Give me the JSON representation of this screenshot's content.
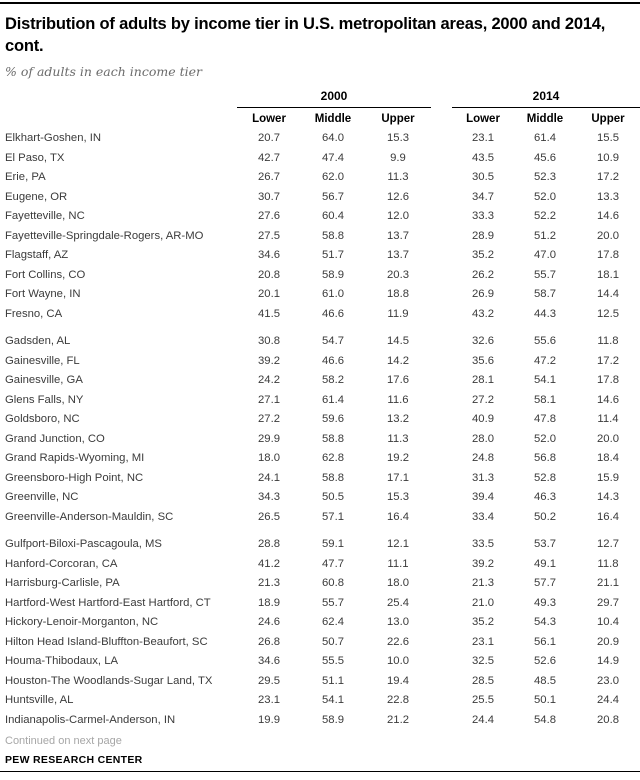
{
  "page": {
    "title": "Distribution of adults by income tier in U.S. metropolitan areas, 2000 and 2014, cont.",
    "subtitle": "% of adults in each income tier",
    "continued_note": "Continued on next page",
    "source": "PEW RESEARCH CENTER"
  },
  "table": {
    "year_headers": [
      "2000",
      "2014"
    ],
    "tier_headers": [
      "Lower",
      "Middle",
      "Upper"
    ],
    "groups": [
      {
        "rows": [
          {
            "area": "Elkhart-Goshen, IN",
            "values_2000": [
              "20.7",
              "64.0",
              "15.3"
            ],
            "values_2014": [
              "23.1",
              "61.4",
              "15.5"
            ]
          },
          {
            "area": "El Paso, TX",
            "values_2000": [
              "42.7",
              "47.4",
              "9.9"
            ],
            "values_2014": [
              "43.5",
              "45.6",
              "10.9"
            ]
          },
          {
            "area": "Erie, PA",
            "values_2000": [
              "26.7",
              "62.0",
              "11.3"
            ],
            "values_2014": [
              "30.5",
              "52.3",
              "17.2"
            ]
          },
          {
            "area": "Eugene, OR",
            "values_2000": [
              "30.7",
              "56.7",
              "12.6"
            ],
            "values_2014": [
              "34.7",
              "52.0",
              "13.3"
            ]
          },
          {
            "area": "Fayetteville, NC",
            "values_2000": [
              "27.6",
              "60.4",
              "12.0"
            ],
            "values_2014": [
              "33.3",
              "52.2",
              "14.6"
            ]
          },
          {
            "area": "Fayetteville-Springdale-Rogers, AR-MO",
            "values_2000": [
              "27.5",
              "58.8",
              "13.7"
            ],
            "values_2014": [
              "28.9",
              "51.2",
              "20.0"
            ]
          },
          {
            "area": "Flagstaff, AZ",
            "values_2000": [
              "34.6",
              "51.7",
              "13.7"
            ],
            "values_2014": [
              "35.2",
              "47.0",
              "17.8"
            ]
          },
          {
            "area": "Fort Collins, CO",
            "values_2000": [
              "20.8",
              "58.9",
              "20.3"
            ],
            "values_2014": [
              "26.2",
              "55.7",
              "18.1"
            ]
          },
          {
            "area": "Fort Wayne, IN",
            "values_2000": [
              "20.1",
              "61.0",
              "18.8"
            ],
            "values_2014": [
              "26.9",
              "58.7",
              "14.4"
            ]
          },
          {
            "area": "Fresno, CA",
            "values_2000": [
              "41.5",
              "46.6",
              "11.9"
            ],
            "values_2014": [
              "43.2",
              "44.3",
              "12.5"
            ]
          }
        ]
      },
      {
        "rows": [
          {
            "area": "Gadsden, AL",
            "values_2000": [
              "30.8",
              "54.7",
              "14.5"
            ],
            "values_2014": [
              "32.6",
              "55.6",
              "11.8"
            ]
          },
          {
            "area": "Gainesville, FL",
            "values_2000": [
              "39.2",
              "46.6",
              "14.2"
            ],
            "values_2014": [
              "35.6",
              "47.2",
              "17.2"
            ]
          },
          {
            "area": "Gainesville, GA",
            "values_2000": [
              "24.2",
              "58.2",
              "17.6"
            ],
            "values_2014": [
              "28.1",
              "54.1",
              "17.8"
            ]
          },
          {
            "area": "Glens Falls, NY",
            "values_2000": [
              "27.1",
              "61.4",
              "11.6"
            ],
            "values_2014": [
              "27.2",
              "58.1",
              "14.6"
            ]
          },
          {
            "area": "Goldsboro, NC",
            "values_2000": [
              "27.2",
              "59.6",
              "13.2"
            ],
            "values_2014": [
              "40.9",
              "47.8",
              "11.4"
            ]
          },
          {
            "area": "Grand Junction, CO",
            "values_2000": [
              "29.9",
              "58.8",
              "11.3"
            ],
            "values_2014": [
              "28.0",
              "52.0",
              "20.0"
            ]
          },
          {
            "area": "Grand Rapids-Wyoming, MI",
            "values_2000": [
              "18.0",
              "62.8",
              "19.2"
            ],
            "values_2014": [
              "24.8",
              "56.8",
              "18.4"
            ]
          },
          {
            "area": "Greensboro-High Point, NC",
            "values_2000": [
              "24.1",
              "58.8",
              "17.1"
            ],
            "values_2014": [
              "31.3",
              "52.8",
              "15.9"
            ]
          },
          {
            "area": "Greenville, NC",
            "values_2000": [
              "34.3",
              "50.5",
              "15.3"
            ],
            "values_2014": [
              "39.4",
              "46.3",
              "14.3"
            ]
          },
          {
            "area": "Greenville-Anderson-Mauldin, SC",
            "values_2000": [
              "26.5",
              "57.1",
              "16.4"
            ],
            "values_2014": [
              "33.4",
              "50.2",
              "16.4"
            ]
          }
        ]
      },
      {
        "rows": [
          {
            "area": "Gulfport-Biloxi-Pascagoula, MS",
            "values_2000": [
              "28.8",
              "59.1",
              "12.1"
            ],
            "values_2014": [
              "33.5",
              "53.7",
              "12.7"
            ]
          },
          {
            "area": "Hanford-Corcoran, CA",
            "values_2000": [
              "41.2",
              "47.7",
              "11.1"
            ],
            "values_2014": [
              "39.2",
              "49.1",
              "11.8"
            ]
          },
          {
            "area": "Harrisburg-Carlisle, PA",
            "values_2000": [
              "21.3",
              "60.8",
              "18.0"
            ],
            "values_2014": [
              "21.3",
              "57.7",
              "21.1"
            ]
          },
          {
            "area": "Hartford-West Hartford-East Hartford, CT",
            "values_2000": [
              "18.9",
              "55.7",
              "25.4"
            ],
            "values_2014": [
              "21.0",
              "49.3",
              "29.7"
            ]
          },
          {
            "area": "Hickory-Lenoir-Morganton, NC",
            "values_2000": [
              "24.6",
              "62.4",
              "13.0"
            ],
            "values_2014": [
              "35.2",
              "54.3",
              "10.4"
            ]
          },
          {
            "area": "Hilton Head Island-Bluffton-Beaufort, SC",
            "values_2000": [
              "26.8",
              "50.7",
              "22.6"
            ],
            "values_2014": [
              "23.1",
              "56.1",
              "20.9"
            ]
          },
          {
            "area": "Houma-Thibodaux, LA",
            "values_2000": [
              "34.6",
              "55.5",
              "10.0"
            ],
            "values_2014": [
              "32.5",
              "52.6",
              "14.9"
            ]
          },
          {
            "area": "Houston-The Woodlands-Sugar Land, TX",
            "values_2000": [
              "29.5",
              "51.1",
              "19.4"
            ],
            "values_2014": [
              "28.5",
              "48.5",
              "23.0"
            ]
          },
          {
            "area": "Huntsville, AL",
            "values_2000": [
              "23.1",
              "54.1",
              "22.8"
            ],
            "values_2014": [
              "25.5",
              "50.1",
              "24.4"
            ]
          },
          {
            "area": "Indianapolis-Carmel-Anderson, IN",
            "values_2000": [
              "19.9",
              "58.9",
              "21.2"
            ],
            "values_2014": [
              "24.4",
              "54.8",
              "20.8"
            ]
          }
        ]
      }
    ]
  }
}
